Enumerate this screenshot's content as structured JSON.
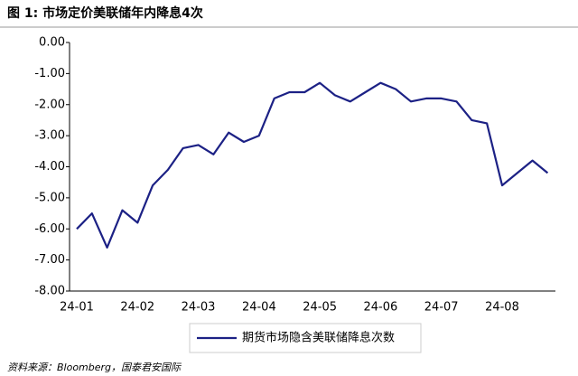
{
  "chart_data": {
    "type": "line",
    "title": "图 1:  市场定价美联储年内降息4次",
    "categories": [
      "24-01",
      null,
      null,
      null,
      "24-02",
      null,
      null,
      null,
      "24-03",
      null,
      null,
      null,
      "24-04",
      null,
      null,
      null,
      "24-05",
      null,
      null,
      null,
      "24-06",
      null,
      null,
      null,
      "24-07",
      null,
      null,
      null,
      "24-08",
      null,
      null,
      null
    ],
    "series": [
      {
        "name": "期货市场隐含美联储降息次数",
        "color": "#1c2185",
        "values": [
          -6.0,
          -5.5,
          -6.6,
          -5.4,
          -5.8,
          -4.6,
          -4.1,
          -3.4,
          -3.3,
          -3.6,
          -2.9,
          -3.2,
          -3.0,
          -1.8,
          -1.6,
          -1.6,
          -1.3,
          -1.7,
          -1.9,
          -1.6,
          -1.3,
          -1.5,
          -1.9,
          -1.8,
          -1.8,
          -1.9,
          -2.5,
          -2.6,
          -4.6,
          -4.2,
          -3.8,
          -4.2
        ]
      }
    ],
    "ylim": [
      -8,
      0
    ],
    "yticks": [
      {
        "value": 0,
        "label": "0.00"
      },
      {
        "value": -1,
        "label": "-1.00"
      },
      {
        "value": -2,
        "label": "-2.00"
      },
      {
        "value": -3,
        "label": "-3.00"
      },
      {
        "value": -4,
        "label": "-4.00"
      },
      {
        "value": -5,
        "label": "-5.00"
      },
      {
        "value": -6,
        "label": "-6.00"
      },
      {
        "value": -7,
        "label": "-7.00"
      },
      {
        "value": -8,
        "label": "-8.00"
      }
    ],
    "grid": false,
    "source": "资料来源：Bloomberg，国泰君安国际"
  }
}
